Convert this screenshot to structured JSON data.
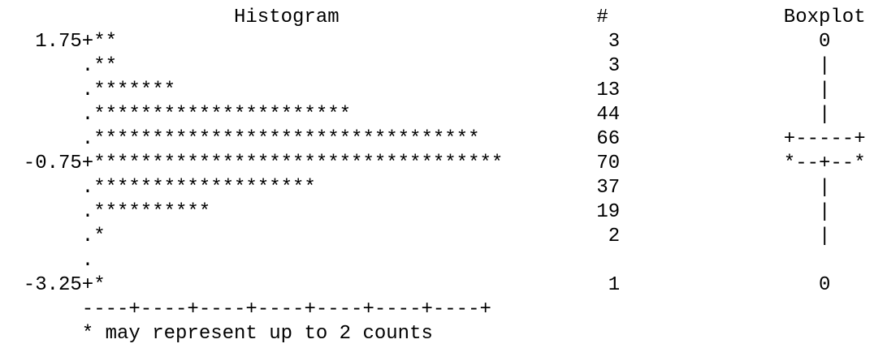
{
  "chart_data": {
    "type": "bar",
    "title": "Histogram",
    "count_header": "#",
    "boxplot_header": "Boxplot",
    "orientation": "horizontal",
    "symbol": "*",
    "bars": [
      {
        "label": "1.75",
        "stars": 2,
        "count": "3",
        "boxplot": "0"
      },
      {
        "label": "",
        "stars": 2,
        "count": "3",
        "boxplot": "|"
      },
      {
        "label": "",
        "stars": 7,
        "count": "13",
        "boxplot": "|"
      },
      {
        "label": "",
        "stars": 22,
        "count": "44",
        "boxplot": "|"
      },
      {
        "label": "",
        "stars": 33,
        "count": "66",
        "boxplot": "+-----+"
      },
      {
        "label": "-0.75",
        "stars": 35,
        "count": "70",
        "boxplot": "*--+--*"
      },
      {
        "label": "",
        "stars": 19,
        "count": "37",
        "boxplot": "|"
      },
      {
        "label": "",
        "stars": 10,
        "count": "19",
        "boxplot": "|"
      },
      {
        "label": "",
        "stars": 1,
        "count": "2",
        "boxplot": "|"
      },
      {
        "label": "",
        "stars": 0,
        "count": "",
        "boxplot": ""
      },
      {
        "label": "-3.25",
        "stars": 1,
        "count": "1",
        "boxplot": "0"
      }
    ],
    "axis_scale": "----+----+----+----+----+----+----+",
    "footnote": "* may represent up to 2 counts"
  }
}
